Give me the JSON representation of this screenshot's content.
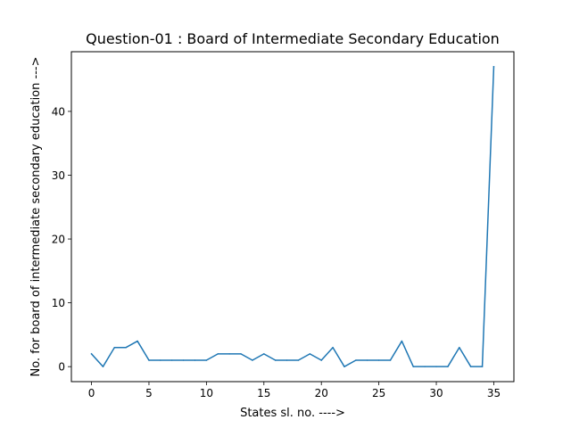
{
  "chart_data": {
    "type": "line",
    "title": "Question-01 : Board of Intermediate Secondary Education",
    "xlabel": "States sl. no. ---->",
    "ylabel": "No. for board of intermediate secondary education --->",
    "xlim": [
      -1.75,
      36.75
    ],
    "ylim": [
      -2.35,
      49.35
    ],
    "xticks": [
      0,
      5,
      10,
      15,
      20,
      25,
      30,
      35
    ],
    "yticks": [
      0,
      10,
      20,
      30,
      40
    ],
    "grid": false,
    "line_color": "#1f77b4",
    "series": [
      {
        "x": [
          0,
          1,
          2,
          3,
          4,
          5,
          6,
          7,
          8,
          9,
          10,
          11,
          12,
          13,
          14,
          15,
          16,
          17,
          18,
          19,
          20,
          21,
          22,
          23,
          24,
          25,
          26,
          27,
          28,
          29,
          30,
          31,
          32,
          33,
          34,
          35
        ],
        "values": [
          2,
          0,
          3,
          3,
          4,
          1,
          1,
          1,
          1,
          1,
          1,
          2,
          2,
          2,
          1,
          2,
          1,
          1,
          1,
          2,
          1,
          3,
          0,
          1,
          1,
          1,
          1,
          4,
          0,
          0,
          0,
          0,
          3,
          0,
          0,
          47
        ]
      }
    ]
  }
}
